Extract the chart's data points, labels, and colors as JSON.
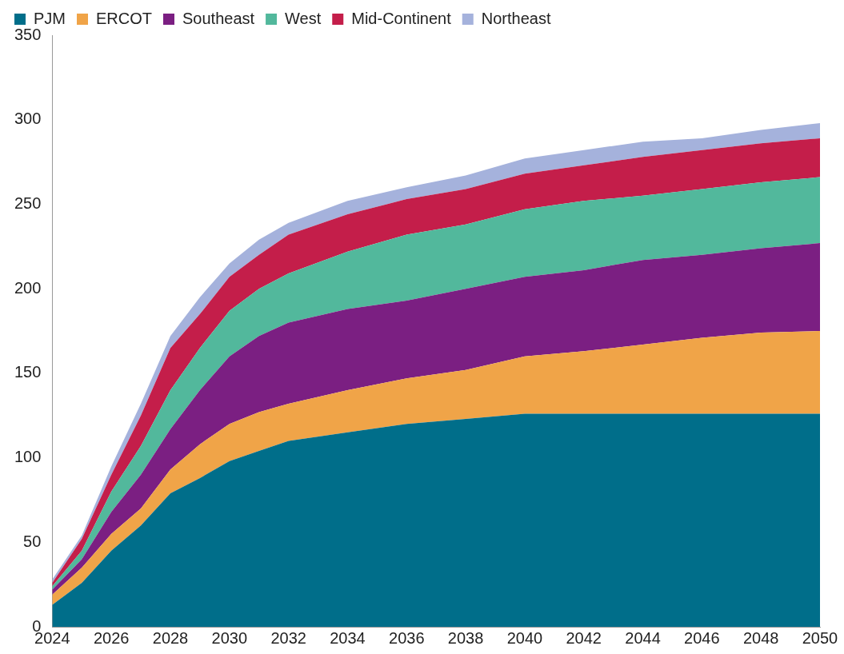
{
  "chart_data": {
    "type": "area",
    "stacked": true,
    "x": [
      2024,
      2025,
      2026,
      2027,
      2028,
      2029,
      2030,
      2031,
      2032,
      2034,
      2036,
      2038,
      2040,
      2042,
      2044,
      2046,
      2048,
      2050
    ],
    "series": [
      {
        "name": "PJM",
        "color": "#006e8a",
        "values": [
          13,
          26,
          45,
          60,
          79,
          88,
          98,
          104,
          110,
          115,
          120,
          123,
          126,
          126,
          126,
          126,
          126,
          126
        ]
      },
      {
        "name": "ERCOT",
        "color": "#f0a448",
        "values": [
          6,
          9,
          10,
          10,
          14,
          20,
          22,
          23,
          22,
          25,
          27,
          29,
          34,
          37,
          41,
          45,
          48,
          49
        ]
      },
      {
        "name": "Southeast",
        "color": "#7b1f82",
        "values": [
          3,
          5,
          13,
          20,
          24,
          32,
          40,
          45,
          48,
          48,
          46,
          48,
          47,
          48,
          50,
          49,
          50,
          52
        ]
      },
      {
        "name": "West",
        "color": "#52b89c",
        "values": [
          2,
          5,
          12,
          17,
          23,
          25,
          27,
          28,
          29,
          34,
          39,
          38,
          40,
          41,
          38,
          39,
          39,
          39
        ]
      },
      {
        "name": "Mid-Continent",
        "color": "#c41e4a",
        "values": [
          2,
          7,
          10,
          18,
          25,
          20,
          20,
          20,
          23,
          22,
          21,
          21,
          21,
          21,
          23,
          23,
          23,
          23
        ]
      },
      {
        "name": "Northeast",
        "color": "#a5b2dc",
        "values": [
          2,
          2,
          5,
          7,
          7,
          10,
          8,
          9,
          7,
          8,
          7,
          8,
          9,
          9,
          9,
          7,
          8,
          9
        ]
      }
    ],
    "xlim": [
      2024,
      2050
    ],
    "xticks": [
      2024,
      2026,
      2028,
      2030,
      2032,
      2034,
      2036,
      2038,
      2040,
      2042,
      2044,
      2046,
      2048,
      2050
    ],
    "ylim": [
      0,
      350
    ],
    "yticks": [
      0,
      50,
      100,
      150,
      200,
      250,
      300,
      350
    ],
    "grid": false,
    "legend": "top"
  }
}
